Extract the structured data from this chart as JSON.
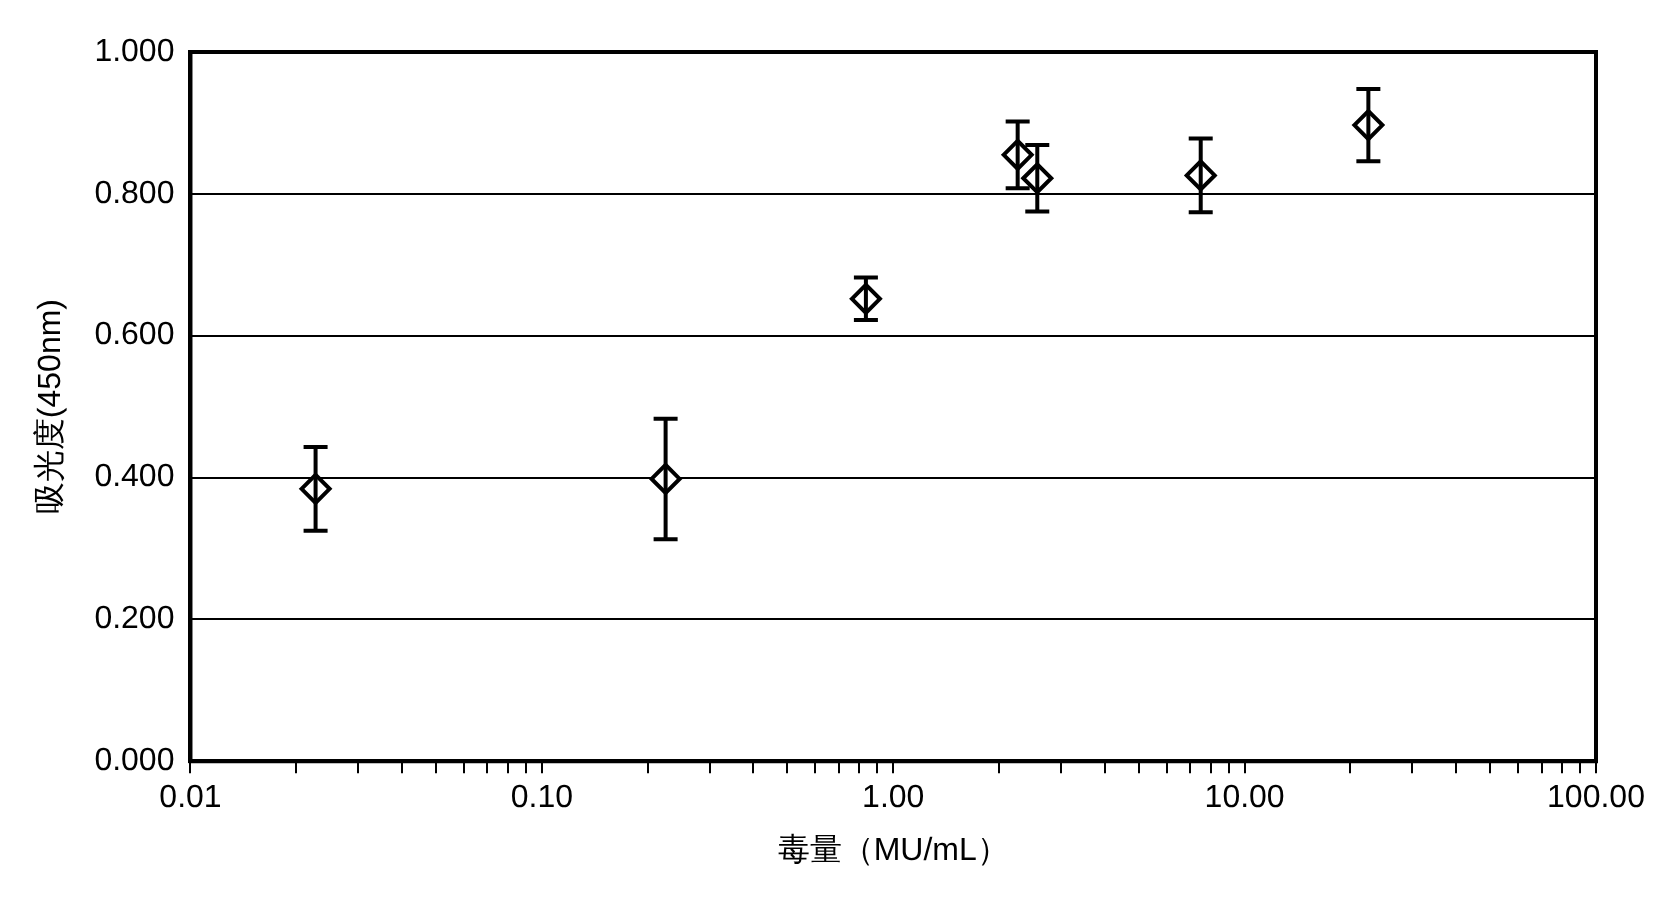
{
  "chart_data": {
    "type": "scatter",
    "xlabel": "毒量（MU/mL）",
    "ylabel": "吸光度(450nm)",
    "log": "x",
    "grid": "y",
    "marker": "diamond",
    "xlim": [
      0.01,
      100
    ],
    "xticks": [
      {
        "value": 0.01,
        "label": "0.01"
      },
      {
        "value": 0.02,
        "label": null
      },
      {
        "value": 0.03,
        "label": null
      },
      {
        "value": 0.04,
        "label": null
      },
      {
        "value": 0.05,
        "label": null
      },
      {
        "value": 0.06,
        "label": null
      },
      {
        "value": 0.07,
        "label": null
      },
      {
        "value": 0.08,
        "label": null
      },
      {
        "value": 0.09,
        "label": null
      },
      {
        "value": 0.1,
        "label": "0.10"
      },
      {
        "value": 0.2,
        "label": null
      },
      {
        "value": 0.3,
        "label": null
      },
      {
        "value": 0.4,
        "label": null
      },
      {
        "value": 0.5,
        "label": null
      },
      {
        "value": 0.6,
        "label": null
      },
      {
        "value": 0.7,
        "label": null
      },
      {
        "value": 0.8,
        "label": null
      },
      {
        "value": 0.9,
        "label": null
      },
      {
        "value": 1,
        "label": "1.00"
      },
      {
        "value": 2,
        "label": null
      },
      {
        "value": 3,
        "label": null
      },
      {
        "value": 4,
        "label": null
      },
      {
        "value": 5,
        "label": null
      },
      {
        "value": 6,
        "label": null
      },
      {
        "value": 7,
        "label": null
      },
      {
        "value": 8,
        "label": null
      },
      {
        "value": 9,
        "label": null
      },
      {
        "value": 10,
        "label": "10.00"
      },
      {
        "value": 20,
        "label": null
      },
      {
        "value": 30,
        "label": null
      },
      {
        "value": 40,
        "label": null
      },
      {
        "value": 50,
        "label": null
      },
      {
        "value": 60,
        "label": null
      },
      {
        "value": 70,
        "label": null
      },
      {
        "value": 80,
        "label": null
      },
      {
        "value": 90,
        "label": null
      },
      {
        "value": 100,
        "label": "100.00"
      }
    ],
    "ylim": [
      0,
      1
    ],
    "yticks": [
      {
        "value": 0,
        "label": "0.000"
      },
      {
        "value": 0.2,
        "label": "0.200"
      },
      {
        "value": 0.4,
        "label": "0.400"
      },
      {
        "value": 0.6,
        "label": "0.600"
      },
      {
        "value": 0.8,
        "label": "0.800"
      },
      {
        "value": 1,
        "label": "1.000"
      }
    ],
    "series": [
      {
        "color": "#000000",
        "x": [
          0.0227,
          0.225,
          0.836,
          2.26,
          2.57,
          7.5,
          22.5
        ],
        "values": [
          0.384,
          0.398,
          0.652,
          0.855,
          0.822,
          0.826,
          0.897
        ],
        "errors": [
          0.059,
          0.085,
          0.03,
          0.047,
          0.047,
          0.052,
          0.051
        ]
      }
    ]
  }
}
